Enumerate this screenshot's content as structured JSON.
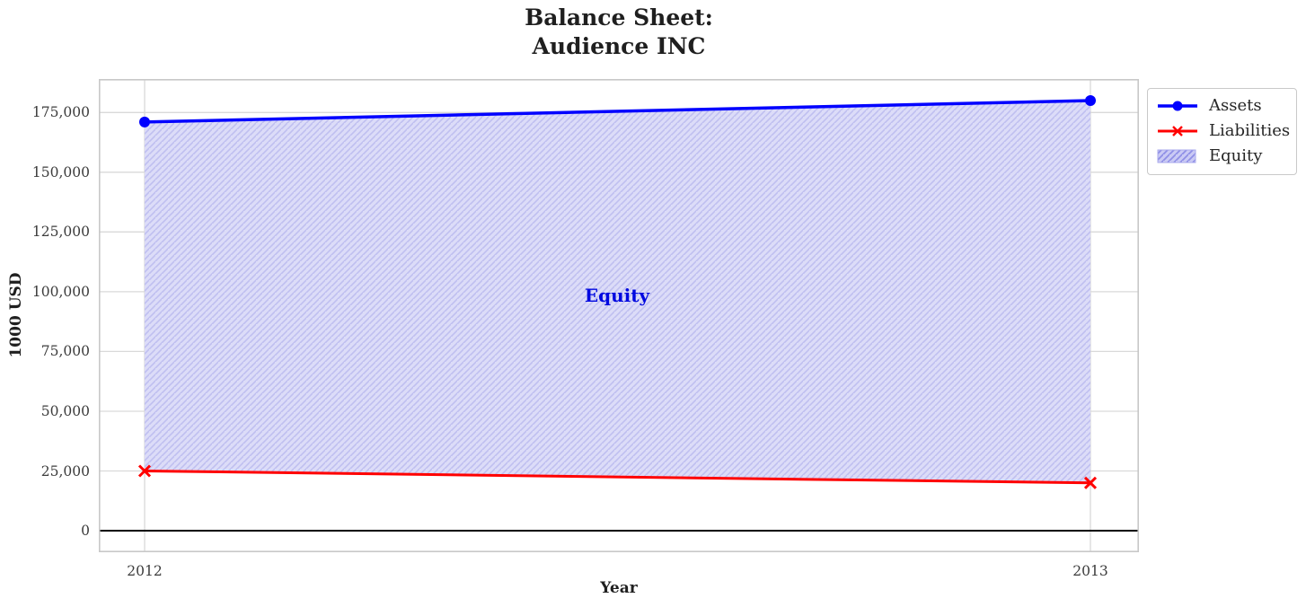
{
  "chart_data": {
    "type": "line",
    "title_line1": "Balance Sheet:",
    "title_line2": "Audience INC",
    "xlabel": "Year",
    "ylabel": "1000 USD",
    "x": [
      2012,
      2013
    ],
    "series": [
      {
        "name": "Assets",
        "values": [
          171000,
          180000
        ],
        "color": "#0000ff",
        "marker": "circle",
        "line_width": 3.5
      },
      {
        "name": "Liabilities",
        "values": [
          25000,
          20000
        ],
        "color": "#ff0000",
        "marker": "x",
        "line_width": 3
      }
    ],
    "fill_between": {
      "name": "Equity",
      "between": [
        "Assets",
        "Liabilities"
      ],
      "fill_color": "#dcdcf8",
      "hatch_color": "#b9b9ef",
      "hatch_style": "diagonal"
    },
    "annotation": {
      "text": "Equity",
      "x": 2012.5,
      "y": 98500,
      "color": "#0008e0"
    },
    "xlim": [
      2011.9516,
      2013.0513
    ],
    "ylim": [
      -9000,
      189000
    ],
    "yticks": [
      0,
      25000,
      50000,
      75000,
      100000,
      125000,
      150000,
      175000
    ],
    "ytick_labels": [
      "0",
      "25,000",
      "50,000",
      "75,000",
      "100,000",
      "125,000",
      "150,000",
      "175,000"
    ],
    "xticks": [
      2012,
      2013
    ],
    "xtick_labels": [
      "2012",
      "2013"
    ],
    "grid": true,
    "zero_line": true,
    "legend": {
      "position": "outside-right-top",
      "entries": [
        "Assets",
        "Liabilities",
        "Equity"
      ]
    },
    "colors": {
      "grid": "#d9d9d9",
      "frame": "#c8c8c8",
      "zero_line": "#000000",
      "title_text": "#1f1f1f",
      "tick_text": "#3c3c3c"
    }
  }
}
